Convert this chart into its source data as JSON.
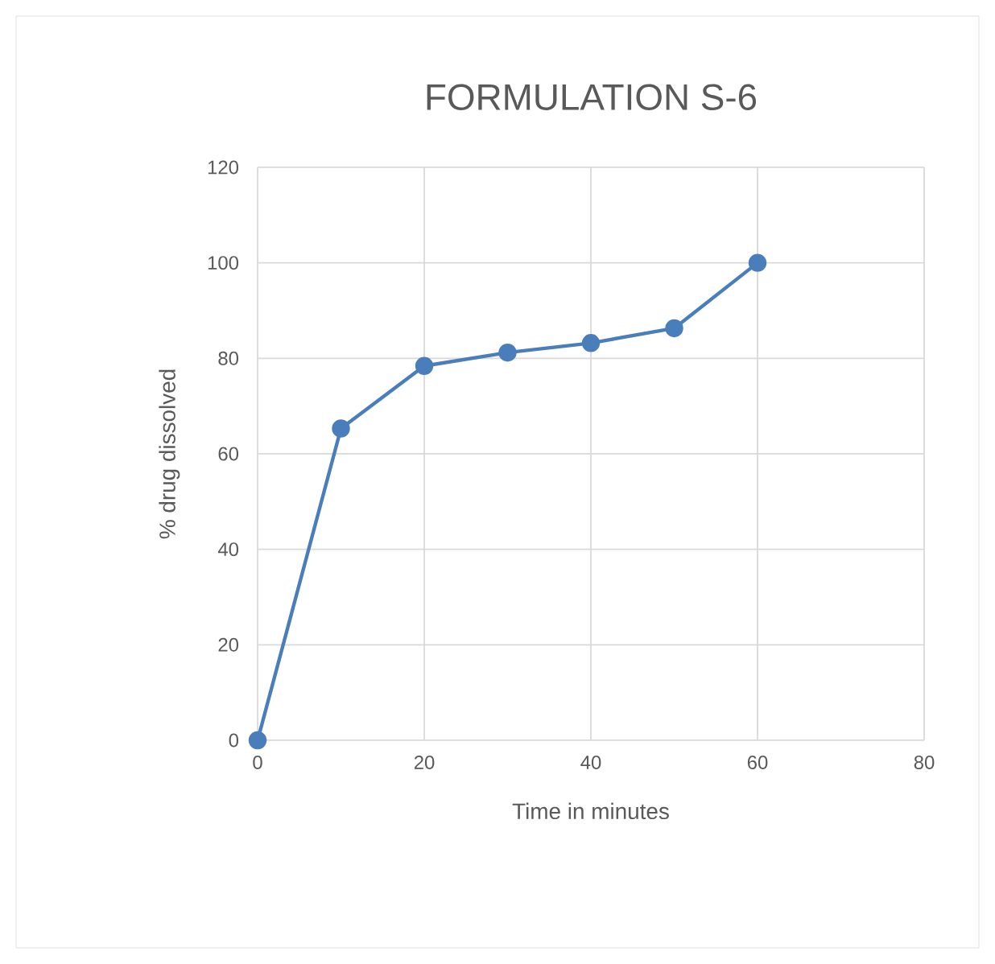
{
  "chart_data": {
    "type": "line",
    "title": "FORMULATION S-6",
    "xlabel": "Time in minutes",
    "ylabel": "% drug dissolved",
    "x": [
      0,
      10,
      20,
      30,
      40,
      50,
      60
    ],
    "series": [
      {
        "color": "#4a7ebb",
        "values": [
          0,
          65.3,
          78.4,
          81.2,
          83.2,
          86.3,
          100
        ]
      }
    ],
    "xlim": [
      0,
      80
    ],
    "ylim": [
      0,
      120
    ],
    "xticks": [
      0,
      20,
      40,
      60,
      80
    ],
    "yticks": [
      0,
      20,
      40,
      60,
      80,
      100,
      120
    ],
    "grid": true,
    "marker": "circle"
  }
}
